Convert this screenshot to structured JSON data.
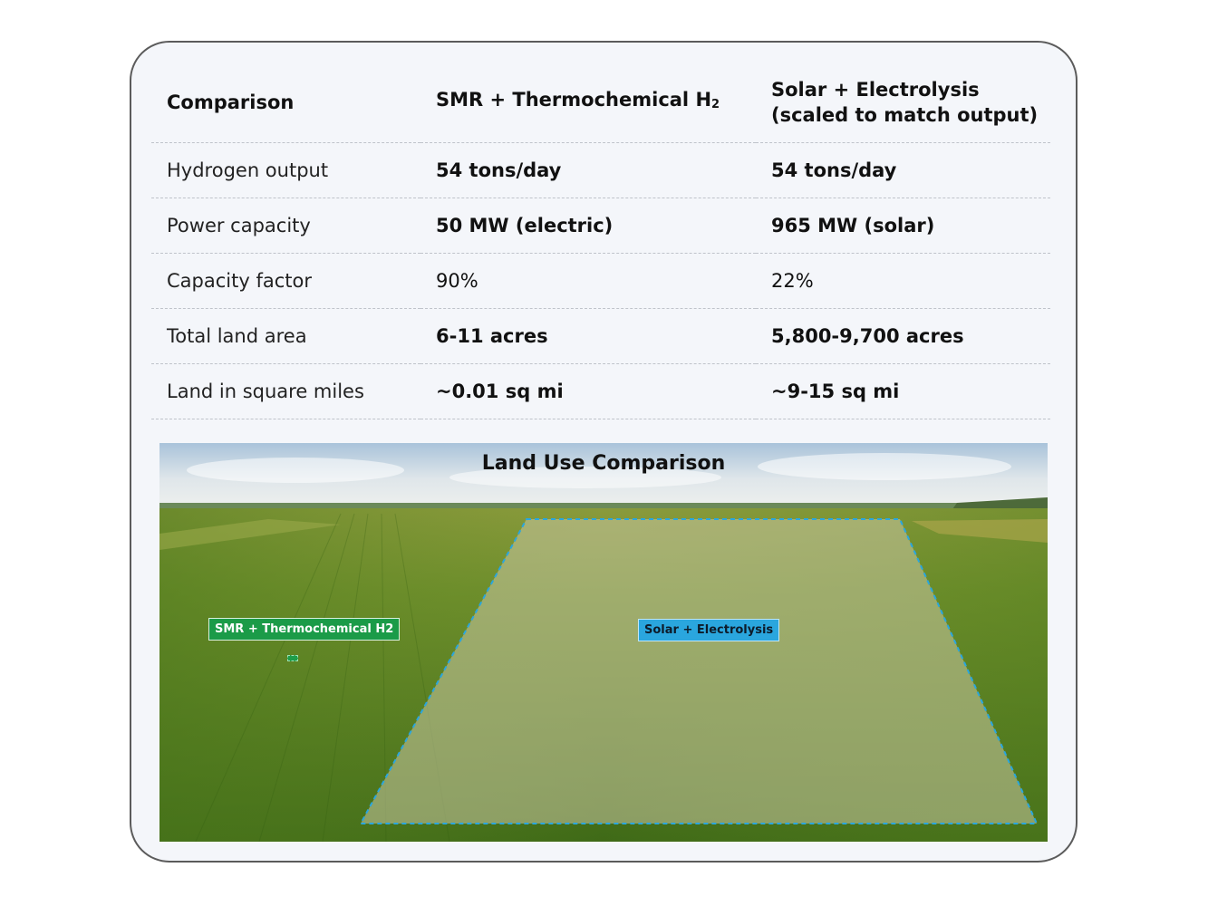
{
  "table": {
    "headers": [
      "Comparison",
      "SMR + Thermochemical H",
      "2",
      "Solar + Electrolysis",
      "(scaled to match output)"
    ],
    "rows": [
      {
        "label": "Hydrogen output",
        "smr": "54 tons/day",
        "solar": "54 tons/day"
      },
      {
        "label": "Power capacity",
        "smr": "50 MW (electric)",
        "solar": "965 MW (solar)"
      },
      {
        "label": "Capacity factor",
        "smr": "90%",
        "solar": "22%"
      },
      {
        "label": "Total land area",
        "smr": "6-11 acres",
        "solar": "5,800-9,700 acres"
      },
      {
        "label": "Land in square miles",
        "smr": "~0.01 sq mi",
        "solar": "~9-15 sq mi"
      }
    ]
  },
  "figure": {
    "title": "Land Use Comparison",
    "smr_label": "SMR + Thermochemical H2",
    "solar_label": "Solar + Electrolysis"
  },
  "colors": {
    "card_bg": "#f4f6fa",
    "smr_green": "#1b9b48",
    "solar_blue": "#2aa6de"
  }
}
